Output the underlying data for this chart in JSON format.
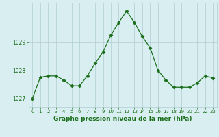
{
  "x": [
    0,
    1,
    2,
    3,
    4,
    5,
    6,
    7,
    8,
    9,
    10,
    11,
    12,
    13,
    14,
    15,
    16,
    17,
    18,
    19,
    20,
    21,
    22,
    23
  ],
  "y": [
    1027.0,
    1027.75,
    1027.8,
    1027.8,
    1027.65,
    1027.45,
    1027.45,
    1027.8,
    1028.25,
    1028.65,
    1029.25,
    1029.7,
    1030.1,
    1029.7,
    1029.2,
    1028.8,
    1028.0,
    1027.65,
    1027.4,
    1027.4,
    1027.4,
    1027.55,
    1027.8,
    1027.73
  ],
  "line_color": "#1a6e1a",
  "marker": "D",
  "marker_size": 2.5,
  "bg_color": "#d8eef0",
  "grid_color": "#b0cdd0",
  "axis_label_color": "#1a6e1a",
  "tick_label_color": "#1a6e1a",
  "xlabel": "Graphe pression niveau de la mer (hPa)",
  "yticks": [
    1027,
    1028,
    1029
  ],
  "ylim": [
    1026.7,
    1030.4
  ],
  "xlim": [
    -0.5,
    23.5
  ],
  "xticks": [
    0,
    1,
    2,
    3,
    4,
    5,
    6,
    7,
    8,
    9,
    10,
    11,
    12,
    13,
    14,
    15,
    16,
    17,
    18,
    19,
    20,
    21,
    22,
    23
  ],
  "xlabel_fontsize": 6.5,
  "xtick_fontsize": 5.0,
  "ytick_fontsize": 5.5
}
